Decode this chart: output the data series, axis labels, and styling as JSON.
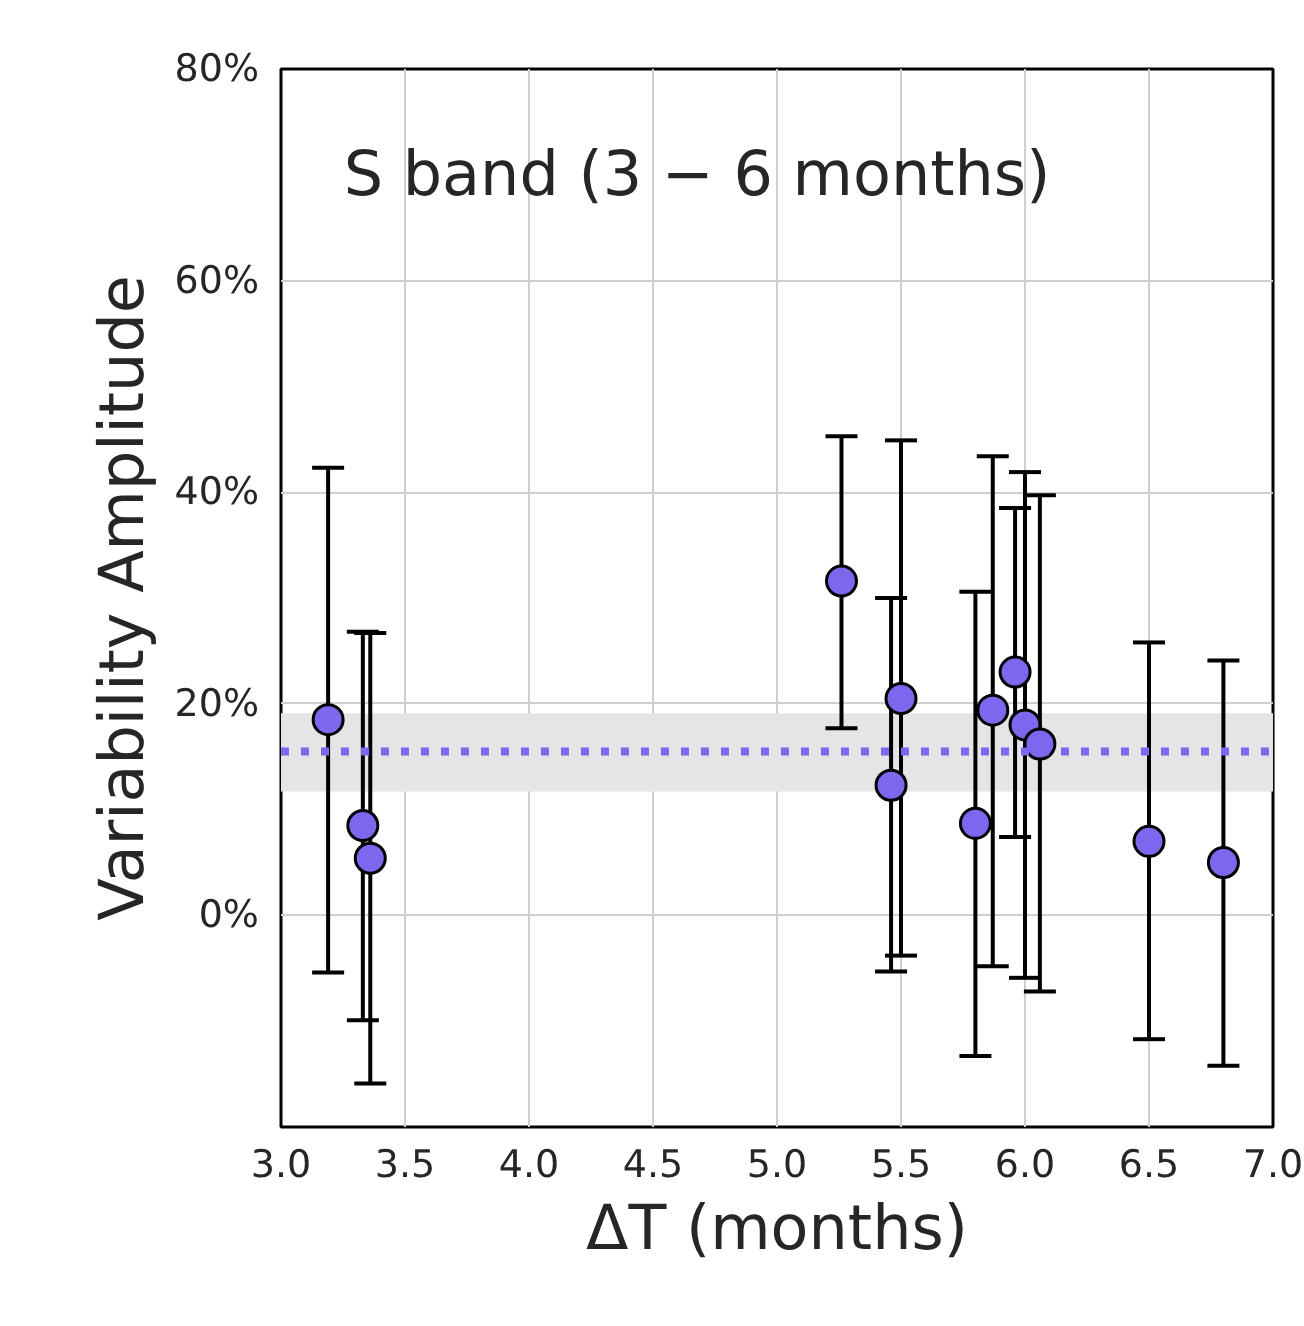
{
  "chart_data": {
    "type": "scatter",
    "title": "S band (3 − 6 months)",
    "xlabel": "ΔT (months)",
    "ylabel": "Variability Amplitude",
    "x": [
      3.19,
      3.33,
      3.36,
      5.26,
      5.5,
      5.46,
      5.8,
      5.87,
      5.96,
      6.0,
      6.06,
      6.5,
      6.8
    ],
    "series": [
      {
        "color": "#7b68ee",
        "values": [
          18.5,
          8.5,
          5.4,
          31.6,
          20.5,
          12.3,
          8.7,
          19.4,
          23.0,
          18.0,
          16.2,
          7.0,
          5.0
        ],
        "errors": [
          [
            -5.4,
            42.3
          ],
          [
            -9.9,
            26.8
          ],
          [
            -15.9,
            26.7
          ],
          [
            17.7,
            45.3
          ],
          [
            -3.8,
            44.9
          ],
          [
            -5.3,
            30.0
          ],
          [
            -13.3,
            30.6
          ],
          [
            -4.8,
            43.4
          ],
          [
            7.4,
            38.5
          ],
          [
            -5.9,
            41.9
          ],
          [
            -7.2,
            39.7
          ],
          [
            -11.7,
            25.8
          ],
          [
            -14.2,
            24.1
          ]
        ]
      }
    ],
    "marker": "circle",
    "xlim": [
      3.0,
      7.0
    ],
    "xticks": [
      {
        "value": 3.0,
        "label": "3.0"
      },
      {
        "value": 3.5,
        "label": "3.5"
      },
      {
        "value": 4.0,
        "label": "4.0"
      },
      {
        "value": 4.5,
        "label": "4.5"
      },
      {
        "value": 5.0,
        "label": "5.0"
      },
      {
        "value": 5.5,
        "label": "5.5"
      },
      {
        "value": 6.0,
        "label": "6.0"
      },
      {
        "value": 6.5,
        "label": "6.5"
      },
      {
        "value": 7.0,
        "label": "7.0"
      }
    ],
    "ylim": [
      -20,
      80
    ],
    "yticks": [
      {
        "value": 0,
        "label": "0%"
      },
      {
        "value": 20,
        "label": "20%"
      },
      {
        "value": 40,
        "label": "40%"
      },
      {
        "value": 60,
        "label": "60%"
      },
      {
        "value": 80,
        "label": "80%"
      }
    ],
    "ref_lines": [
      {
        "axis": "y",
        "value": 15.5,
        "color": "#7b68ee",
        "line_style": "dotted"
      }
    ],
    "bands": [
      {
        "axis": "y",
        "from": 11.7,
        "to": 19.1,
        "color": "#e5e5e5"
      }
    ],
    "grid": true
  }
}
